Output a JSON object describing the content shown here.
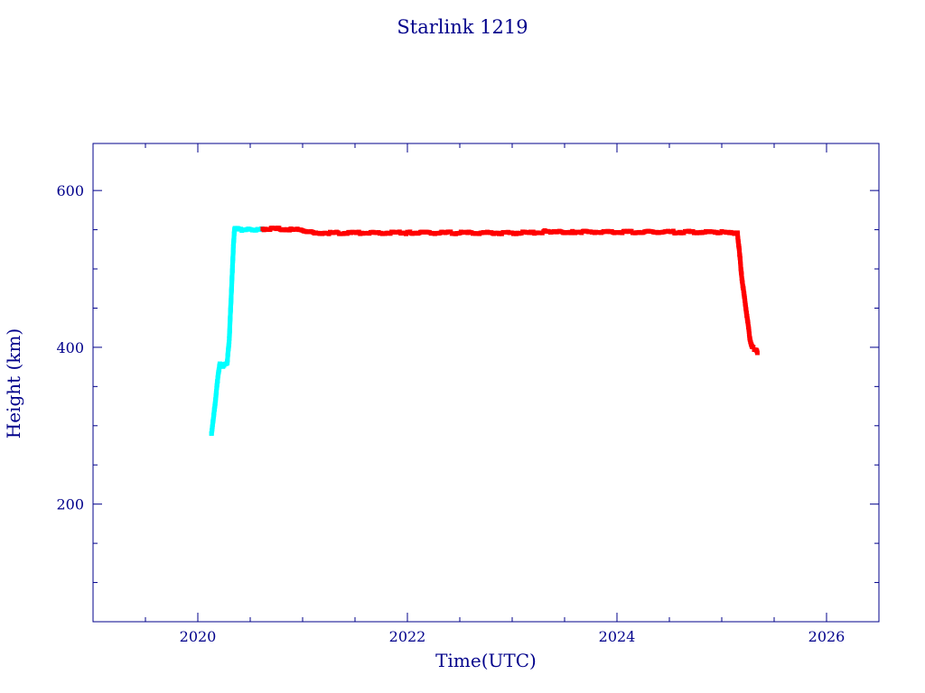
{
  "chart_data": {
    "type": "scatter",
    "title": "Starlink 1219",
    "xlabel": "Time(UTC)",
    "ylabel": "Height (km)",
    "xlim": [
      2019.0,
      2026.5
    ],
    "ylim": [
      50,
      660
    ],
    "x_major_ticks": [
      2020,
      2022,
      2024,
      2026
    ],
    "x_minor_ticks": [
      2019.5,
      2020.5,
      2021,
      2021.5,
      2022.5,
      2023,
      2023.5,
      2024.5,
      2025,
      2025.5,
      2026.5
    ],
    "y_major_ticks": [
      200,
      400,
      600
    ],
    "y_minor_ticks": [
      100,
      150,
      250,
      300,
      350,
      450,
      500,
      550
    ],
    "x_tick_labels": [
      "2020",
      "2022",
      "2024",
      "2026"
    ],
    "y_tick_labels": [
      "200",
      "400",
      "600"
    ],
    "grid": false,
    "colors": {
      "axis": "#00008b",
      "early": "#00ffff",
      "main": "#ff0000",
      "background": "#ffffff"
    },
    "series": [
      {
        "color": "#00ffff",
        "x": [
          2020.13,
          2020.15,
          2020.17,
          2020.19,
          2020.21,
          2020.23,
          2020.24,
          2020.26,
          2020.28,
          2020.3,
          2020.31,
          2020.32,
          2020.33,
          2020.34,
          2020.35,
          2020.36,
          2020.38,
          2020.42,
          2020.47,
          2020.52,
          2020.57,
          2020.62
        ],
        "y": [
          290,
          310,
          335,
          360,
          380,
          378,
          376,
          378,
          380,
          410,
          440,
          470,
          500,
          530,
          550,
          552,
          551,
          550,
          550,
          550,
          550,
          550
        ]
      },
      {
        "color": "#ff0000",
        "x": [
          2020.62,
          2020.7,
          2020.8,
          2020.9,
          2021.0,
          2021.05,
          2021.2,
          2021.5,
          2021.8,
          2022.0,
          2022.3,
          2022.6,
          2022.9,
          2023.2,
          2023.3,
          2023.32,
          2023.4,
          2023.6,
          2023.9,
          2024.2,
          2024.5,
          2024.8,
          2025.0,
          2025.1,
          2025.15,
          2025.17,
          2025.19,
          2025.21,
          2025.23,
          2025.25,
          2025.27,
          2025.29,
          2025.31,
          2025.33,
          2025.34
        ],
        "y": [
          551,
          551,
          551,
          550,
          550,
          547,
          546,
          546,
          546,
          546,
          546,
          546,
          546,
          546,
          547,
          549,
          547,
          547,
          547,
          547,
          547,
          547,
          547,
          547,
          545,
          520,
          490,
          470,
          450,
          430,
          410,
          400,
          398,
          396,
          393
        ]
      }
    ]
  }
}
